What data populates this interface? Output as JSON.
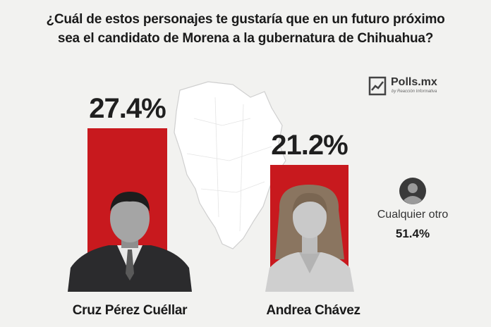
{
  "title_lines": [
    "¿Cuál de estos personajes te gustaría que en un futuro próximo",
    "sea el candidato de Morena a la gubernatura de Chihuahua?"
  ],
  "logo": {
    "text": "Polls.mx",
    "subtext": "by Reacción Informativa"
  },
  "colors": {
    "bar": "#c8191e",
    "background": "#f2f2f0"
  },
  "chart_data": {
    "type": "bar",
    "title": "¿Cuál de estos personajes te gustaría que en un futuro próximo sea el candidato de Morena a la gubernatura de Chihuahua?",
    "categories": [
      "Cruz Pérez Cuéllar",
      "Andrea Chávez",
      "Cualquier otro"
    ],
    "values": [
      27.4,
      21.2,
      51.4
    ],
    "value_labels": [
      "27.4%",
      "21.2%",
      "51.4%"
    ],
    "drawn_as_bar": [
      true,
      true,
      false
    ],
    "unit": "%",
    "grid": false,
    "legend": "none"
  },
  "other": {
    "label": "Cualquier otro",
    "value": "51.4%",
    "icon": "person-silhouette-icon"
  }
}
